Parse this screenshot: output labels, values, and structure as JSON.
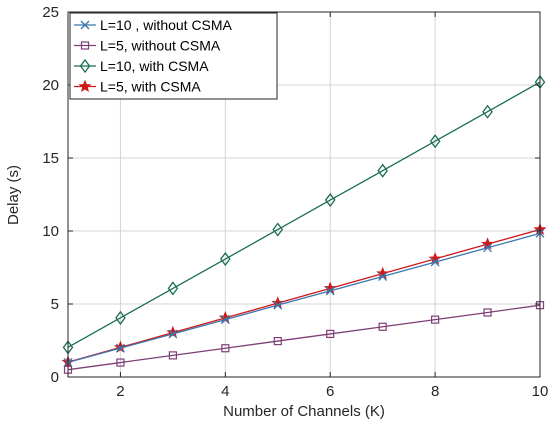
{
  "chart_data": {
    "type": "line",
    "xlabel": "Number of Channels (K)",
    "ylabel": "Delay (s)",
    "xlim": [
      1,
      10
    ],
    "ylim": [
      0,
      25
    ],
    "xticks": [
      2,
      4,
      6,
      8,
      10
    ],
    "yticks": [
      0,
      5,
      10,
      15,
      20,
      25
    ],
    "x_tick_labels": [
      "2",
      "4",
      "6",
      "8",
      "10"
    ],
    "y_tick_labels": [
      "0",
      "5",
      "10",
      "15",
      "20",
      "25"
    ],
    "grid": true,
    "legend_position": "top-left",
    "x": [
      1,
      2,
      3,
      4,
      5,
      6,
      7,
      8,
      9,
      10
    ],
    "series": [
      {
        "name": "L=10 , without CSMA",
        "color": "#3a78b0",
        "marker": "x",
        "values": [
          1.0,
          1.98,
          2.95,
          3.93,
          4.92,
          5.9,
          6.88,
          7.87,
          8.85,
          9.84
        ]
      },
      {
        "name": "L=5, without CSMA",
        "color": "#7e3f77",
        "marker": "square",
        "values": [
          0.5,
          0.99,
          1.48,
          1.97,
          2.46,
          2.95,
          3.44,
          3.93,
          4.42,
          4.92
        ]
      },
      {
        "name": "L=10, with CSMA",
        "color": "#1a6e52",
        "marker": "diamond",
        "values": [
          2.03,
          4.05,
          6.07,
          8.08,
          10.1,
          12.12,
          14.13,
          16.15,
          18.17,
          20.2
        ]
      },
      {
        "name": "L=5, with CSMA",
        "color": "#d01818",
        "marker": "star",
        "values": [
          1.02,
          2.03,
          3.04,
          4.05,
          5.06,
          6.07,
          7.08,
          8.09,
          9.1,
          10.1
        ]
      }
    ]
  }
}
